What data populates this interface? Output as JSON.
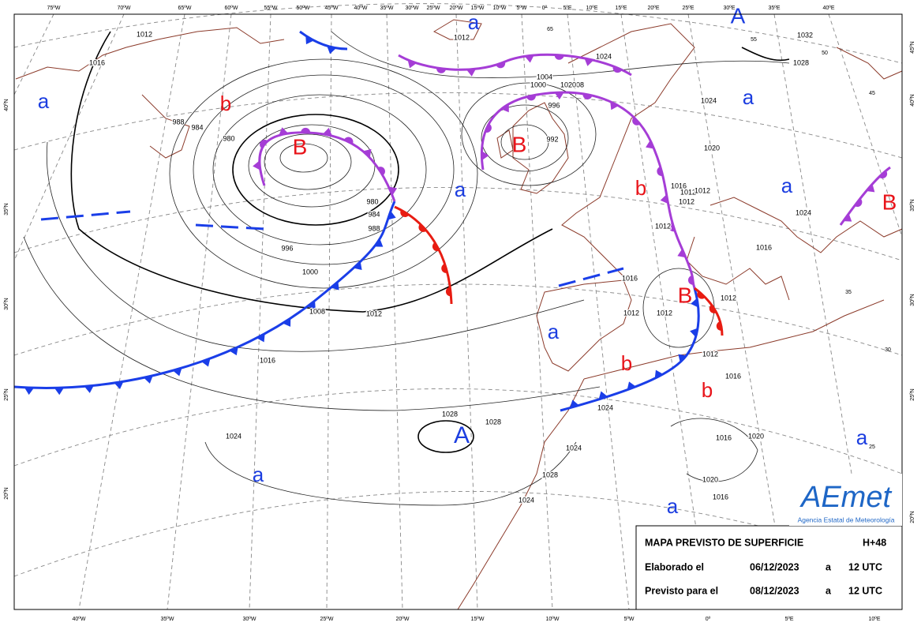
{
  "map": {
    "top_longitude_labels": [
      "75ºW",
      "70ºW",
      "65ºW",
      "60ºW",
      "55ºW",
      "50ºW",
      "45ºW",
      "40ºW",
      "35ºW",
      "30ºW",
      "25ºW",
      "20ºW",
      "15ºW",
      "10ºW",
      "5ºW",
      "0º",
      "5ºE",
      "10ºE",
      "15ºE",
      "20ºE",
      "25ºE",
      "30ºE",
      "35ºE",
      "40ºE"
    ],
    "bottom_longitude_labels": [
      "40ºW",
      "35ºW",
      "30ºW",
      "25ºW",
      "20ºW",
      "15ºW",
      "10ºW",
      "5ºW",
      "0º",
      "5ºE",
      "10ºE"
    ],
    "left_latitude_labels": [
      "40ºN",
      "35ºN",
      "30ºN",
      "25ºN",
      "20ºN"
    ],
    "right_latitude_labels": [
      "45ºN",
      "40ºN",
      "35ºN",
      "30ºN",
      "25ºN",
      "20ºN"
    ],
    "minor_labels": [
      "65",
      "55",
      "50",
      "45",
      "35",
      "30",
      "25"
    ],
    "pressure_centers": [
      "a",
      "b",
      "B",
      "a",
      "A",
      "a",
      "B",
      "a",
      "b",
      "a",
      "B",
      "a",
      "B",
      "b",
      "b",
      "A",
      "a",
      "a",
      "a"
    ],
    "isobar_labels": [
      "1012",
      "1016",
      "988",
      "984",
      "980",
      "980",
      "984",
      "988",
      "996",
      "1000",
      "1008",
      "1012",
      "1016",
      "1024",
      "1028",
      "1028",
      "1024",
      "1012",
      "1012",
      "1004",
      "1000",
      "1008",
      "996",
      "992",
      "1024",
      "1032",
      "1028",
      "1024",
      "1020",
      "1016",
      "1012",
      "1012",
      "1012",
      "1016",
      "1012",
      "1012",
      "1012",
      "1016",
      "1016",
      "1024",
      "1028",
      "1024",
      "1024",
      "1016",
      "1020",
      "1020",
      "1016",
      "1012",
      "1020"
    ]
  },
  "info_box": {
    "title": "MAPA PREVISTO DE SUPERFICIE",
    "lead_time": "H+48",
    "issued_label": "Elaborado el",
    "issued_date": "06/12/2023",
    "issued_at": "a",
    "issued_time": "12 UTC",
    "valid_label": "Previsto para el",
    "valid_date": "08/12/2023",
    "valid_at": "a",
    "valid_time": "12 UTC"
  },
  "logo": {
    "name": "AEmet",
    "subtitle": "Agencia Estatal de Meteorología"
  }
}
